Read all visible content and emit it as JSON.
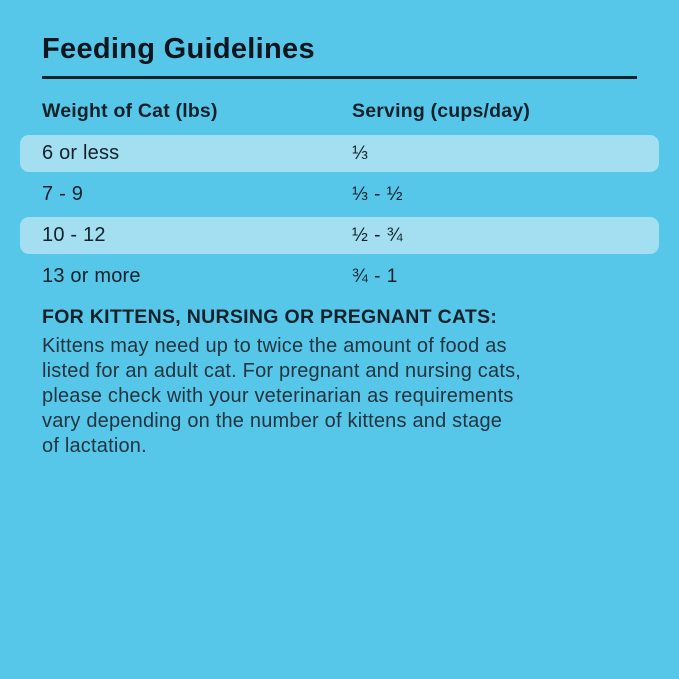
{
  "page": {
    "title": "Feeding Guidelines",
    "background_color": "#56C7E8",
    "highlight_color": "#A3DFF0",
    "text_color": "#14212B"
  },
  "table": {
    "columns": {
      "weight": "Weight of Cat (lbs)",
      "serving": "Serving (cups/day)"
    },
    "rows": [
      {
        "weight": "6 or less",
        "serving": "⅓",
        "highlighted": true
      },
      {
        "weight": "7 - 9",
        "serving": "⅓ - ½",
        "highlighted": false
      },
      {
        "weight": "10 - 12",
        "serving": "½ - ¾",
        "highlighted": true
      },
      {
        "weight": "13 or more",
        "serving": "¾ - 1",
        "highlighted": false
      }
    ]
  },
  "note": {
    "heading": "FOR KITTENS, NURSING OR PREGNANT CATS:",
    "lines": [
      "Kittens may need up to twice the amount of food as",
      "listed for an adult cat. For pregnant and nursing cats,",
      "please check with your veterinarian as requirements",
      "vary depending on the number of kittens and stage",
      "of lactation."
    ]
  }
}
